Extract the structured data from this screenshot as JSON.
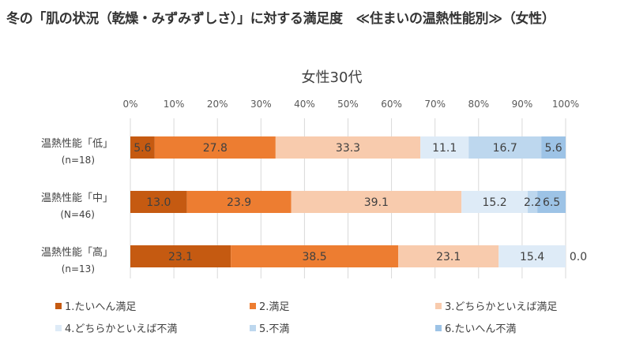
{
  "page_title": "冬の「肌の状況（乾燥・みずみずしさ）」に対する満足度　≪住まいの温熱性能別≫（女性）",
  "chart_data": {
    "type": "bar",
    "orientation": "horizontal",
    "stacked": "percent",
    "title": "女性30代",
    "x_ticks": [
      "0%",
      "10%",
      "20%",
      "30%",
      "40%",
      "50%",
      "60%",
      "70%",
      "80%",
      "90%",
      "100%"
    ],
    "xlim": [
      0,
      100
    ],
    "grid": true,
    "legend_position": "bottom",
    "categories": [
      {
        "label": "温熱性能「低」",
        "n": "(n=18)"
      },
      {
        "label": "温熱性能「中」",
        "n": "(N=46)"
      },
      {
        "label": "温熱性能「高」",
        "n": "(n=13)"
      }
    ],
    "series": [
      {
        "name": "1.たいへん満足",
        "color": "#C55A11",
        "values": [
          5.6,
          13.0,
          23.1
        ]
      },
      {
        "name": "2.満足",
        "color": "#ED7D31",
        "values": [
          27.8,
          23.9,
          38.5
        ]
      },
      {
        "name": "3.どちらかといえば満足",
        "color": "#F8CBAD",
        "values": [
          33.3,
          39.1,
          23.1
        ]
      },
      {
        "name": "4.どちらかといえば不満",
        "color": "#DEEBF7",
        "values": [
          11.1,
          15.2,
          15.4
        ]
      },
      {
        "name": "5.不満",
        "color": "#BDD7EE",
        "values": [
          16.7,
          2.2,
          0.0
        ]
      },
      {
        "name": "6.たいへん不満",
        "color": "#9DC3E6",
        "values": [
          5.6,
          6.5,
          0.0
        ]
      }
    ]
  }
}
